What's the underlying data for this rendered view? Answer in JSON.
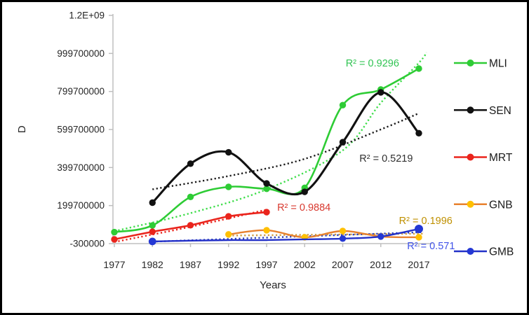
{
  "figure": {
    "background": "#ffffff",
    "border_color": "#000000",
    "axis_color": "#bfbfbf",
    "text_color": "#262626"
  },
  "chart_data": {
    "type": "line",
    "title": "",
    "xlabel": "Years",
    "ylabel": "D",
    "grid": false,
    "legend_position": "right",
    "ylim": [
      -300000,
      1199700000
    ],
    "xlim_years": [
      1977,
      2017
    ],
    "y_ticks": [
      {
        "label": "1.2E+09",
        "value": 1199700000
      },
      {
        "label": "999700000",
        "value": 999700000
      },
      {
        "label": "799700000",
        "value": 799700000
      },
      {
        "label": "599700000",
        "value": 599700000
      },
      {
        "label": "399700000",
        "value": 399700000
      },
      {
        "label": "199700000",
        "value": 199700000
      },
      {
        "label": "-300000",
        "value": -300000
      }
    ],
    "x_ticks": [
      {
        "label": "1977",
        "year": 1977
      },
      {
        "label": "1982",
        "year": 1982
      },
      {
        "label": "1987",
        "year": 1987
      },
      {
        "label": "1992",
        "year": 1992
      },
      {
        "label": "1997",
        "year": 1997
      },
      {
        "label": "2002",
        "year": 2002
      },
      {
        "label": "2007",
        "year": 2007
      },
      {
        "label": "2012",
        "year": 2012
      },
      {
        "label": "2017",
        "year": 2017
      }
    ],
    "series": [
      {
        "name": "MLI",
        "color": "#2ecc35",
        "marker_color": "#2ecc35",
        "line_width": 2.6,
        "points": [
          {
            "year": 1977,
            "value": 60000000
          },
          {
            "year": 1982,
            "value": 95000000
          },
          {
            "year": 1987,
            "value": 245000000
          },
          {
            "year": 1992,
            "value": 298000000
          },
          {
            "year": 1997,
            "value": 288000000
          },
          {
            "year": 2002,
            "value": 293000000
          },
          {
            "year": 2007,
            "value": 728000000
          },
          {
            "year": 2012,
            "value": 810000000
          },
          {
            "year": 2017,
            "value": 920000000
          }
        ],
        "trend": {
          "color": "#3edd4a",
          "samples": [
            [
              1977,
              65000000
            ],
            [
              1987,
              160000000
            ],
            [
              1997,
              285000000
            ],
            [
              2007,
              490000000
            ],
            [
              2012,
              740000000
            ],
            [
              2017,
              950000000
            ],
            [
              2018,
              1005000000
            ]
          ],
          "r2_label": "R² = 0.9296",
          "label_color": "#31c453",
          "label_anchor": [
            2010.9,
            945000000
          ]
        }
      },
      {
        "name": "SEN",
        "color": "#111111",
        "marker_color": "#111111",
        "line_width": 3.1,
        "points": [
          {
            "year": 1982,
            "value": 215000000
          },
          {
            "year": 1987,
            "value": 420000000
          },
          {
            "year": 1992,
            "value": 480000000
          },
          {
            "year": 1997,
            "value": 316000000
          },
          {
            "year": 2002,
            "value": 272000000
          },
          {
            "year": 2007,
            "value": 533000000
          },
          {
            "year": 2012,
            "value": 795000000
          },
          {
            "year": 2017,
            "value": 580000000
          }
        ],
        "trend": {
          "color": "#1a1a1a",
          "samples": [
            [
              1982,
              285000000
            ],
            [
              1992,
              355000000
            ],
            [
              2002,
              445000000
            ],
            [
              2012,
              600000000
            ],
            [
              2017,
              685000000
            ]
          ],
          "r2_label": "R² = 0.5219",
          "label_color": "#303030",
          "label_anchor": [
            2012.7,
            445000000
          ]
        }
      },
      {
        "name": "MRT",
        "color": "#ea241c",
        "marker_color": "#ea241c",
        "line_width": 2.6,
        "points": [
          {
            "year": 1977,
            "value": 22000000
          },
          {
            "year": 1982,
            "value": 62000000
          },
          {
            "year": 1987,
            "value": 96000000
          },
          {
            "year": 1992,
            "value": 143000000
          },
          {
            "year": 1997,
            "value": 165000000
          }
        ],
        "trend": {
          "color": "#ea241c",
          "samples": [
            [
              1977,
              8000000
            ],
            [
              1987,
              88000000
            ],
            [
              1997,
              178000000
            ]
          ],
          "r2_label": "R² = 0.9884",
          "label_color": "#d8392f",
          "label_anchor": [
            2001.9,
            187000000
          ]
        }
      },
      {
        "name": "GNB",
        "color": "#e8812e",
        "marker_color": "#ffc000",
        "line_width": 2.4,
        "points": [
          {
            "year": 1992,
            "value": 48000000
          },
          {
            "year": 1997,
            "value": 70000000
          },
          {
            "year": 2002,
            "value": 33000000
          },
          {
            "year": 2007,
            "value": 66000000
          },
          {
            "year": 2012,
            "value": 37000000
          },
          {
            "year": 2017,
            "value": 33000000
          }
        ],
        "trend": {
          "color": "#cf9a3d",
          "samples": [
            [
              1992,
              42000000
            ],
            [
              2017.5,
              52000000
            ]
          ],
          "r2_label": "R² = 0.1996",
          "label_color": "#bf9000",
          "label_anchor": [
            2017.9,
            117000000
          ]
        }
      },
      {
        "name": "GMB",
        "color": "#2230c8",
        "marker_color": "#2438d4",
        "line_width": 2.4,
        "points": [
          {
            "year": 1982,
            "value": 11000000,
            "r": 5.4
          },
          {
            "year": 1987,
            "value": 15000000,
            "marker": false
          },
          {
            "year": 1992,
            "value": 18000000,
            "marker": false
          },
          {
            "year": 1997,
            "value": 18000000,
            "marker": false
          },
          {
            "year": 2002,
            "value": 22000000,
            "marker": false
          },
          {
            "year": 2007,
            "value": 26000000
          },
          {
            "year": 2012,
            "value": 37000000
          },
          {
            "year": 2017,
            "value": 77000000,
            "r": 6
          }
        ],
        "trend": {
          "color": "#2a3db8",
          "samples": [
            [
              1982,
              10000000
            ],
            [
              2017.6,
              60000000
            ]
          ],
          "r2_label": "R² = 0.571",
          "label_color": "#4053e8",
          "label_anchor": [
            2018.6,
            -15000000
          ]
        }
      }
    ]
  }
}
